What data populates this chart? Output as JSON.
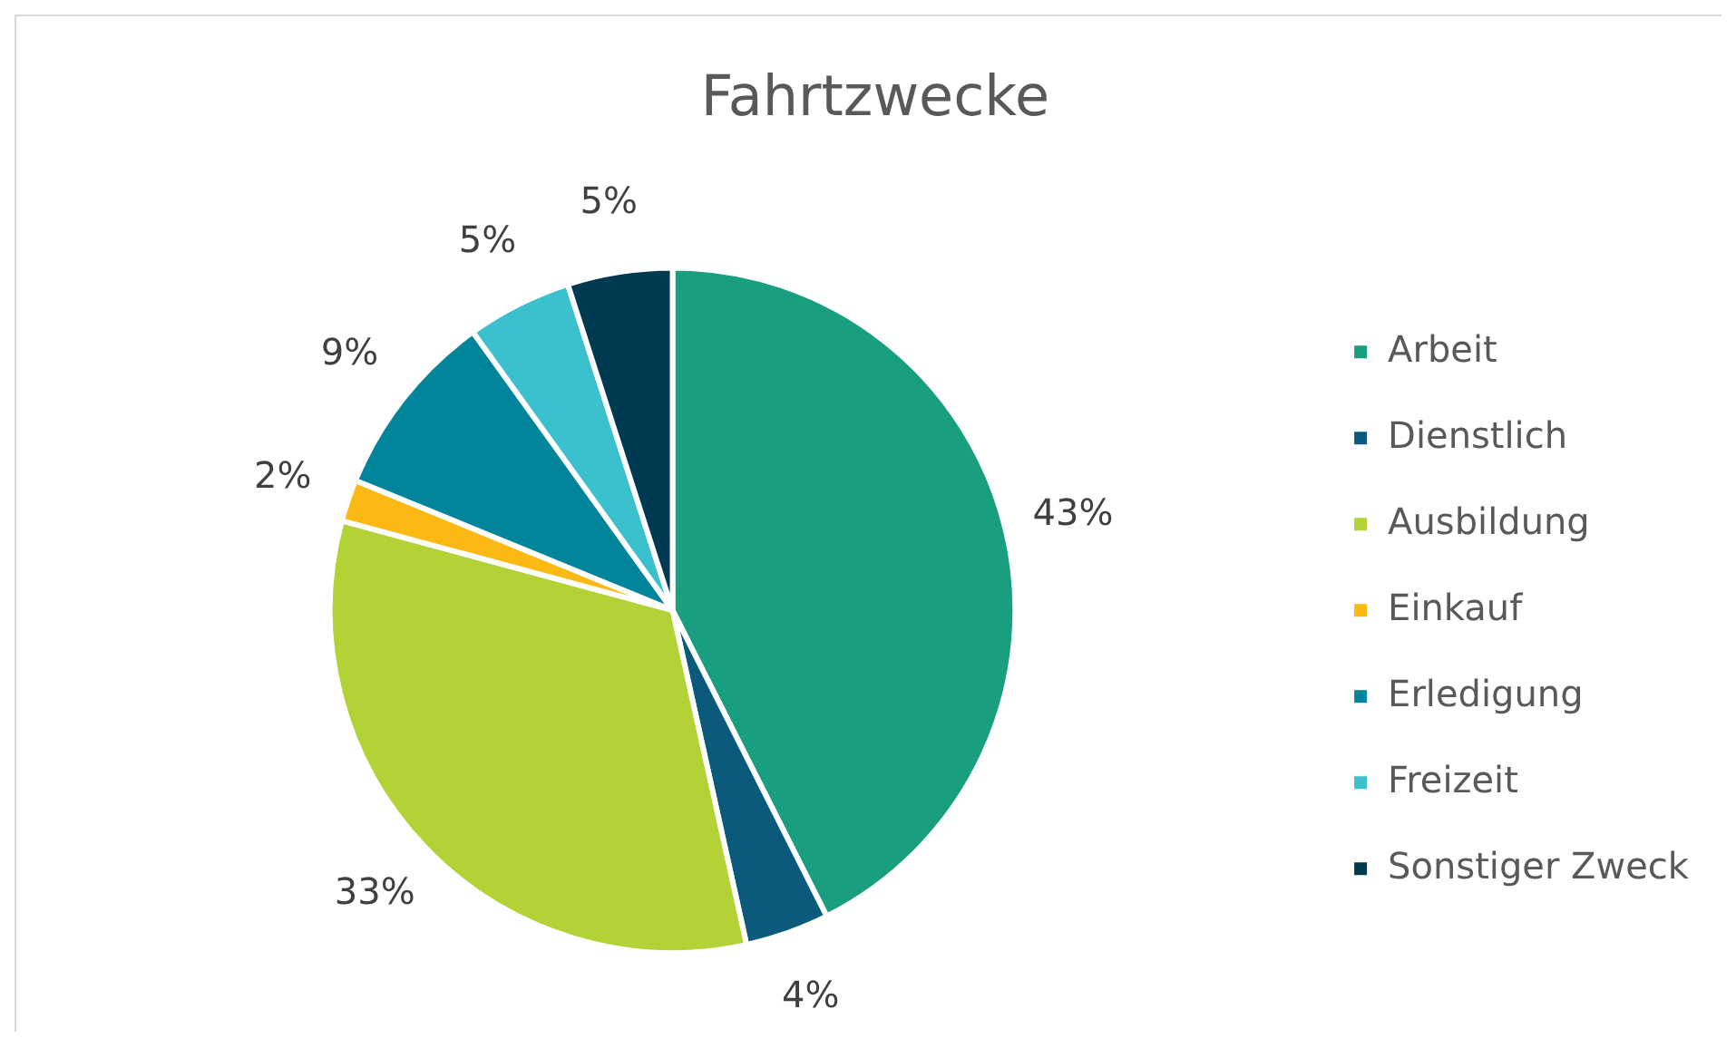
{
  "chart_data": {
    "type": "pie",
    "title": "Fahrtzwecke",
    "categories": [
      "Arbeit",
      "Dienstlich",
      "Ausbildung",
      "Einkauf",
      "Erledigung",
      "Freizeit",
      "Sonstiger Zweck"
    ],
    "values": [
      43,
      4,
      33,
      2,
      9,
      5,
      5
    ],
    "colors": [
      "#199e7f",
      "#0b5a7c",
      "#b2d235",
      "#fdb913",
      "#02859a",
      "#3bc1cd",
      "#003a52"
    ],
    "value_labels": [
      "43%",
      "4%",
      "33%",
      "2%",
      "9%",
      "5%",
      "5%"
    ],
    "legend": "right"
  }
}
